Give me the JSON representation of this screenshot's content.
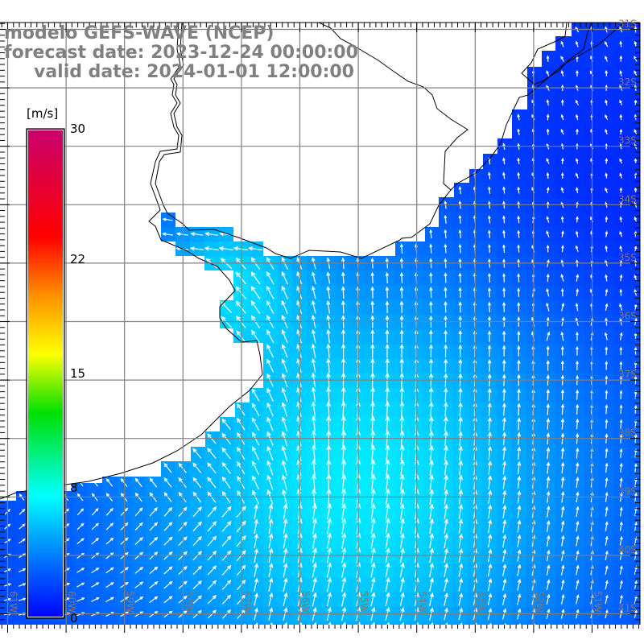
{
  "title": {
    "model": "modelo GEFS-WAVE (NCEP)",
    "forecast_date": "forecast date: 2023-12-24 00:00:00",
    "valid_date": "valid date: 2024-01-01 12:00:00"
  },
  "colorbar": {
    "unit": "[m/s]",
    "ticks": [
      {
        "value": 30,
        "label": "30"
      },
      {
        "value": 22,
        "label": "22"
      },
      {
        "value": 15,
        "label": "15"
      },
      {
        "value": 8,
        "label": "8"
      },
      {
        "value": 0,
        "label": "0"
      }
    ],
    "range": [
      0,
      30
    ],
    "colors": [
      "#0000ff",
      "#0080ff",
      "#00ffff",
      "#00e000",
      "#ffff00",
      "#ff8000",
      "#ff0000",
      "#c8006e"
    ]
  },
  "map": {
    "variable": "wind speed and direction",
    "land_color": "#ffffff",
    "grid_color": "#808080",
    "coast_color": "#000000",
    "lat_labels": [
      "31S",
      "32S",
      "33S",
      "34S",
      "35S",
      "36S",
      "37S",
      "38S",
      "39S",
      "40S",
      "41S"
    ],
    "lon_labels": [
      "61W",
      "60W",
      "59W",
      "58W",
      "57W",
      "56W",
      "55W",
      "54W",
      "53W",
      "52W",
      "51W"
    ]
  }
}
